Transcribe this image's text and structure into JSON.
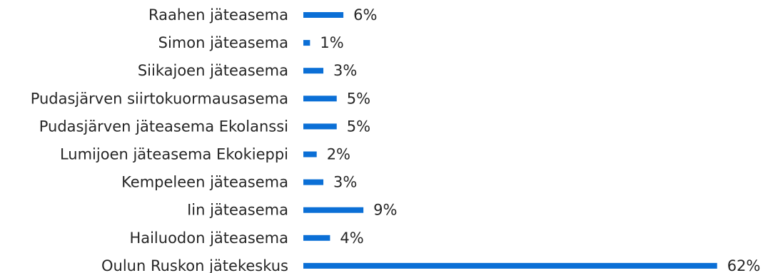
{
  "chart_data": {
    "type": "bar",
    "orientation": "horizontal",
    "categories": [
      "Raahen jäteasema",
      "Simon jäteasema",
      "Siikajoen jäteasema",
      "Pudasjärven siirtokuormausasema",
      "Pudasjärven jäteasema Ekolanssi",
      "Lumijoen jäteasema Ekokieppi",
      "Kempeleen jäteasema",
      "Iin jäteasema",
      "Hailuodon jäteasema",
      "Oulun Ruskon jätekeskus"
    ],
    "values": [
      6,
      1,
      3,
      5,
      5,
      2,
      3,
      9,
      4,
      62
    ],
    "value_labels": [
      "6%",
      "1%",
      "3%",
      "5%",
      "5%",
      "2%",
      "3%",
      "9%",
      "4%",
      "62%"
    ],
    "title": "",
    "xlabel": "",
    "ylabel": "",
    "xlim": [
      0,
      62
    ],
    "grid": false,
    "legend": "none",
    "bar_color": "#0b6fd6"
  }
}
